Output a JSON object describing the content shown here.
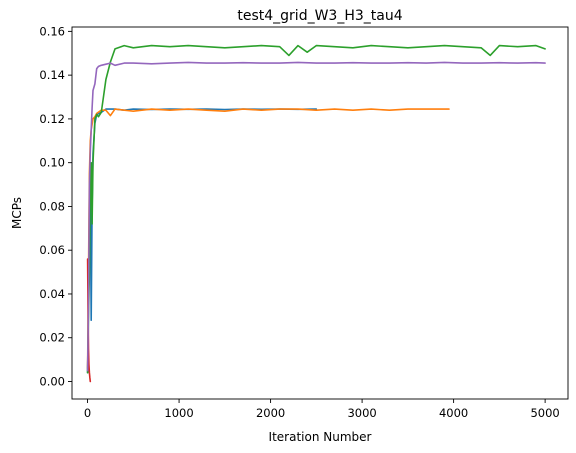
{
  "chart_data": {
    "type": "line",
    "title": "test4_grid_W3_H3_tau4",
    "xlabel": "Iteration Number",
    "ylabel": "MCPs",
    "xlim": [
      -170,
      5250
    ],
    "ylim": [
      -0.008,
      0.162
    ],
    "xticks": [
      0,
      1000,
      2000,
      3000,
      4000,
      5000
    ],
    "xtick_labels": [
      "0",
      "1000",
      "2000",
      "3000",
      "4000",
      "5000"
    ],
    "yticks": [
      0.0,
      0.02,
      0.04,
      0.06,
      0.08,
      0.1,
      0.12,
      0.14,
      0.16
    ],
    "ytick_labels": [
      "0.00",
      "0.02",
      "0.04",
      "0.06",
      "0.08",
      "0.10",
      "0.12",
      "0.14",
      "0.16"
    ],
    "grid": false,
    "legend": "none",
    "series": [
      {
        "color": "#1f77b4",
        "x": [
          0,
          10,
          20,
          30,
          40,
          50,
          60,
          80,
          100,
          150,
          200,
          300,
          400,
          500,
          700,
          900,
          1100,
          1300,
          1500,
          1700,
          1900,
          2100,
          2300,
          2500
        ],
        "y": [
          0.004,
          0.04,
          0.055,
          0.085,
          0.028,
          0.08,
          0.104,
          0.118,
          0.122,
          0.123,
          0.1245,
          0.1245,
          0.124,
          0.1245,
          0.1243,
          0.1245,
          0.1244,
          0.1245,
          0.1243,
          0.1245,
          0.1244,
          0.1245,
          0.1244,
          0.1245
        ]
      },
      {
        "color": "#ff7f0e",
        "x": [
          0,
          10,
          20,
          30,
          40,
          60,
          80,
          100,
          150,
          200,
          250,
          300,
          400,
          500,
          700,
          900,
          1100,
          1300,
          1500,
          1700,
          1900,
          2100,
          2300,
          2500,
          2700,
          2900,
          3100,
          3300,
          3500,
          3700,
          3950
        ],
        "y": [
          0.006,
          0.05,
          0.095,
          0.11,
          0.115,
          0.12,
          0.121,
          0.1225,
          0.124,
          0.124,
          0.1215,
          0.1245,
          0.124,
          0.1235,
          0.1245,
          0.124,
          0.1245,
          0.124,
          0.1235,
          0.1245,
          0.124,
          0.1245,
          0.1245,
          0.124,
          0.1245,
          0.124,
          0.1245,
          0.124,
          0.1245,
          0.1245,
          0.1245
        ]
      },
      {
        "color": "#2ca02c",
        "x": [
          0,
          10,
          20,
          30,
          40,
          50,
          60,
          80,
          100,
          120,
          150,
          200,
          250,
          300,
          400,
          500,
          700,
          900,
          1100,
          1300,
          1500,
          1700,
          1900,
          2100,
          2200,
          2300,
          2400,
          2500,
          2700,
          2900,
          3100,
          3300,
          3500,
          3700,
          3900,
          4100,
          4300,
          4400,
          4500,
          4700,
          4900,
          5000
        ],
        "y": [
          0.004,
          0.03,
          0.05,
          0.09,
          0.1,
          0.072,
          0.1,
          0.12,
          0.122,
          0.121,
          0.123,
          0.138,
          0.146,
          0.152,
          0.1535,
          0.1525,
          0.1535,
          0.153,
          0.1535,
          0.153,
          0.1525,
          0.153,
          0.1535,
          0.153,
          0.149,
          0.1535,
          0.1505,
          0.1535,
          0.153,
          0.1525,
          0.1535,
          0.153,
          0.1525,
          0.153,
          0.1535,
          0.153,
          0.1525,
          0.149,
          0.1535,
          0.153,
          0.1535,
          0.152
        ]
      },
      {
        "color": "#d62728",
        "x": [
          0,
          5,
          10,
          15,
          20,
          25,
          30
        ],
        "y": [
          0.056,
          0.035,
          0.015,
          0.008,
          0.004,
          0.002,
          0.0
        ]
      },
      {
        "color": "#9467bd",
        "x": [
          0,
          10,
          20,
          30,
          40,
          50,
          60,
          80,
          100,
          120,
          150,
          200,
          250,
          300,
          400,
          500,
          700,
          900,
          1100,
          1300,
          1500,
          1700,
          1900,
          2100,
          2300,
          2500,
          2700,
          2900,
          3100,
          3300,
          3500,
          3700,
          3900,
          4100,
          4300,
          4500,
          4700,
          4900,
          5000
        ],
        "y": [
          0.005,
          0.035,
          0.09,
          0.105,
          0.115,
          0.125,
          0.133,
          0.136,
          0.143,
          0.144,
          0.1445,
          0.145,
          0.1455,
          0.1445,
          0.1455,
          0.1455,
          0.1452,
          0.1455,
          0.1458,
          0.1455,
          0.1455,
          0.1457,
          0.1455,
          0.1455,
          0.1458,
          0.1455,
          0.1455,
          0.1457,
          0.1455,
          0.1455,
          0.1457,
          0.1455,
          0.1458,
          0.1455,
          0.1455,
          0.1457,
          0.1455,
          0.1457,
          0.1455
        ]
      }
    ]
  }
}
